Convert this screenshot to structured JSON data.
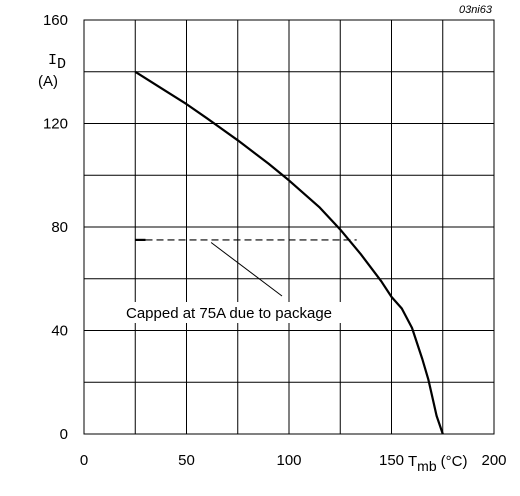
{
  "chart_data": {
    "type": "line",
    "figure_code": "03ni63",
    "ylabel_symbol": "I",
    "ylabel_subscript": "D",
    "ylabel_unit": "(A)",
    "xlabel_symbol": "T",
    "xlabel_subscript": "mb",
    "xlabel_unit": "(°C)",
    "xlim": [
      0,
      200
    ],
    "ylim": [
      0,
      160
    ],
    "x_ticks": [
      0,
      50,
      100,
      150,
      200
    ],
    "y_ticks": [
      0,
      40,
      80,
      120,
      160
    ],
    "grid": true,
    "series": [
      {
        "x": [
          25,
          40,
          50,
          60,
          75,
          90,
          100,
          115,
          125,
          135,
          145,
          150,
          155,
          160,
          165,
          168,
          170,
          172,
          175
        ],
        "y": [
          140,
          132.5,
          127.5,
          122,
          113.5,
          104.5,
          98,
          87.5,
          79,
          69.5,
          59,
          53,
          48.5,
          41,
          29,
          21,
          14,
          7,
          0
        ],
        "style": "solid"
      },
      {
        "x": [
          25,
          30
        ],
        "y": [
          75,
          75
        ],
        "style": "solid"
      },
      {
        "x": [
          30,
          133
        ],
        "y": [
          75,
          75
        ],
        "style": "dashed"
      }
    ],
    "annotation": {
      "text": "Capped at 75A due to package",
      "pointer_to": [
        62,
        74
      ]
    }
  }
}
